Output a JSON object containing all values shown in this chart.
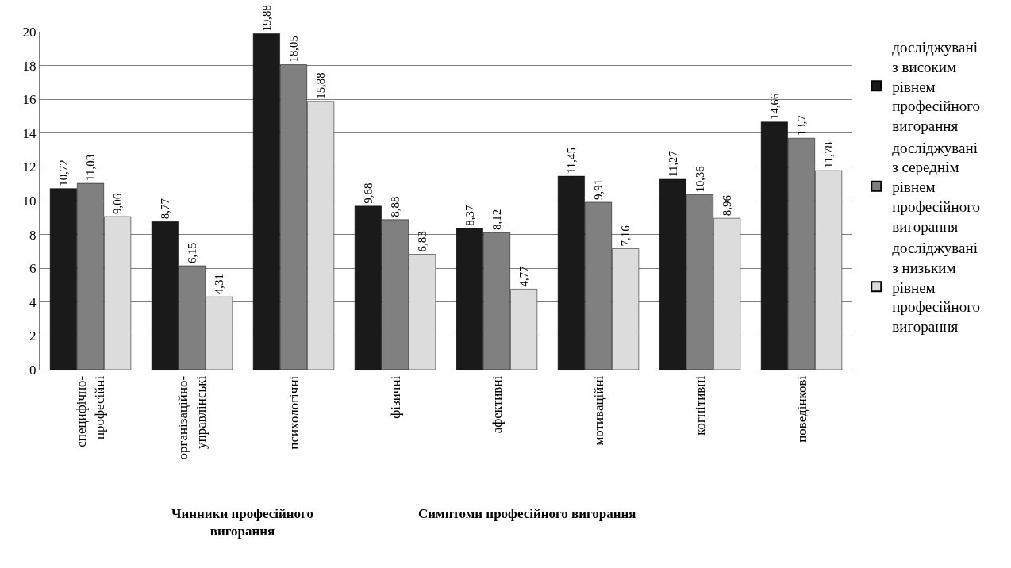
{
  "chart_data": {
    "type": "bar",
    "categories": [
      "специфічно-професійні",
      "організаційно-управлінські",
      "психологічні",
      "фізичні",
      "афективні",
      "мотиваційні",
      "когнітивні",
      "поведінкові"
    ],
    "series": [
      {
        "name": "досліджувані з високим рівнем професійного вигорання",
        "color": "#1a1a1a",
        "values": [
          10.72,
          8.77,
          19.88,
          9.68,
          8.37,
          11.45,
          11.27,
          14.66
        ],
        "value_labels": [
          "10,72",
          "8,77",
          "19,88",
          "9,68",
          "8,37",
          "11,45",
          "11,27",
          "14,66"
        ]
      },
      {
        "name": "досліджувані з середнім рівнем професійного вигорання",
        "color": "#808080",
        "values": [
          11.03,
          6.15,
          18.05,
          8.88,
          8.12,
          9.91,
          10.36,
          13.7
        ],
        "value_labels": [
          "11,03",
          "6,15",
          "18,05",
          "8,88",
          "8,12",
          "9,91",
          "10,36",
          "13,7"
        ]
      },
      {
        "name": "досліджувані з низьким рівнем професійного вигорання",
        "color": "#dcdcdc",
        "values": [
          9.06,
          4.31,
          15.88,
          6.83,
          4.77,
          7.16,
          8.96,
          11.78
        ],
        "value_labels": [
          "9,06",
          "4,31",
          "15,88",
          "6,83",
          "4,77",
          "7,16",
          "8,96",
          "11,78"
        ]
      }
    ],
    "ylim": [
      0,
      20
    ],
    "yticks": [
      0,
      2,
      4,
      6,
      8,
      10,
      12,
      14,
      16,
      18,
      20
    ],
    "grid": "y",
    "legend": "right",
    "annotations": [
      "Чинники професійного вигорання",
      "Симптоми професійного вигорання"
    ]
  }
}
